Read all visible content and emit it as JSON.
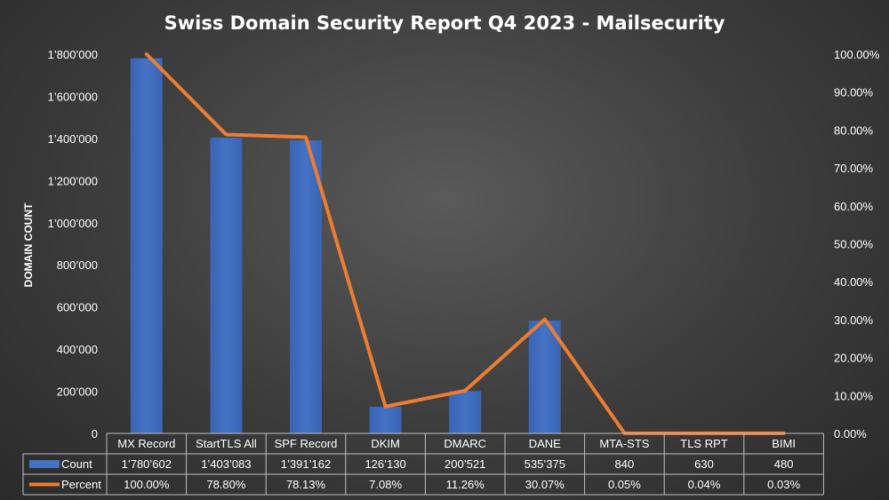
{
  "chart_data": {
    "type": "bar",
    "title": "Swiss Domain Security Report Q4 2023 - Mailsecurity",
    "ylabel": "DOMAIN COUNT",
    "categories": [
      "MX Record",
      "StartTLS All",
      "SPF Record",
      "DKIM",
      "DMARC",
      "DANE",
      "MTA-STS",
      "TLS RPT",
      "BIMI"
    ],
    "series": [
      {
        "name": "Count",
        "type": "bar",
        "axis": "left",
        "color": "#4472c4",
        "values": [
          1780602,
          1403083,
          1391162,
          126130,
          200521,
          535375,
          840,
          630,
          480
        ],
        "labels": [
          "1’780’602",
          "1’403’083",
          "1’391’162",
          "126’130",
          "200’521",
          "535’375",
          "840",
          "630",
          "480"
        ]
      },
      {
        "name": "Percent",
        "type": "line",
        "axis": "right",
        "color": "#ed7d31",
        "values": [
          100.0,
          78.8,
          78.13,
          7.08,
          11.26,
          30.07,
          0.05,
          0.04,
          0.03
        ],
        "labels": [
          "100.00%",
          "78.80%",
          "78.13%",
          "7.08%",
          "11.26%",
          "30.07%",
          "0.05%",
          "0.04%",
          "0.03%"
        ]
      }
    ],
    "ylim": [
      0,
      1800000
    ],
    "y_ticks": [
      "0",
      "200’000",
      "400’000",
      "600’000",
      "800’000",
      "1’000’000",
      "1’200’000",
      "1’400’000",
      "1’600’000",
      "1’800’000"
    ],
    "y2lim": [
      0,
      100
    ],
    "y2_ticks": [
      "0.00%",
      "10.00%",
      "20.00%",
      "30.00%",
      "40.00%",
      "50.00%",
      "60.00%",
      "70.00%",
      "80.00%",
      "90.00%",
      "100.00%"
    ],
    "grid": false,
    "legend": "data-table"
  }
}
